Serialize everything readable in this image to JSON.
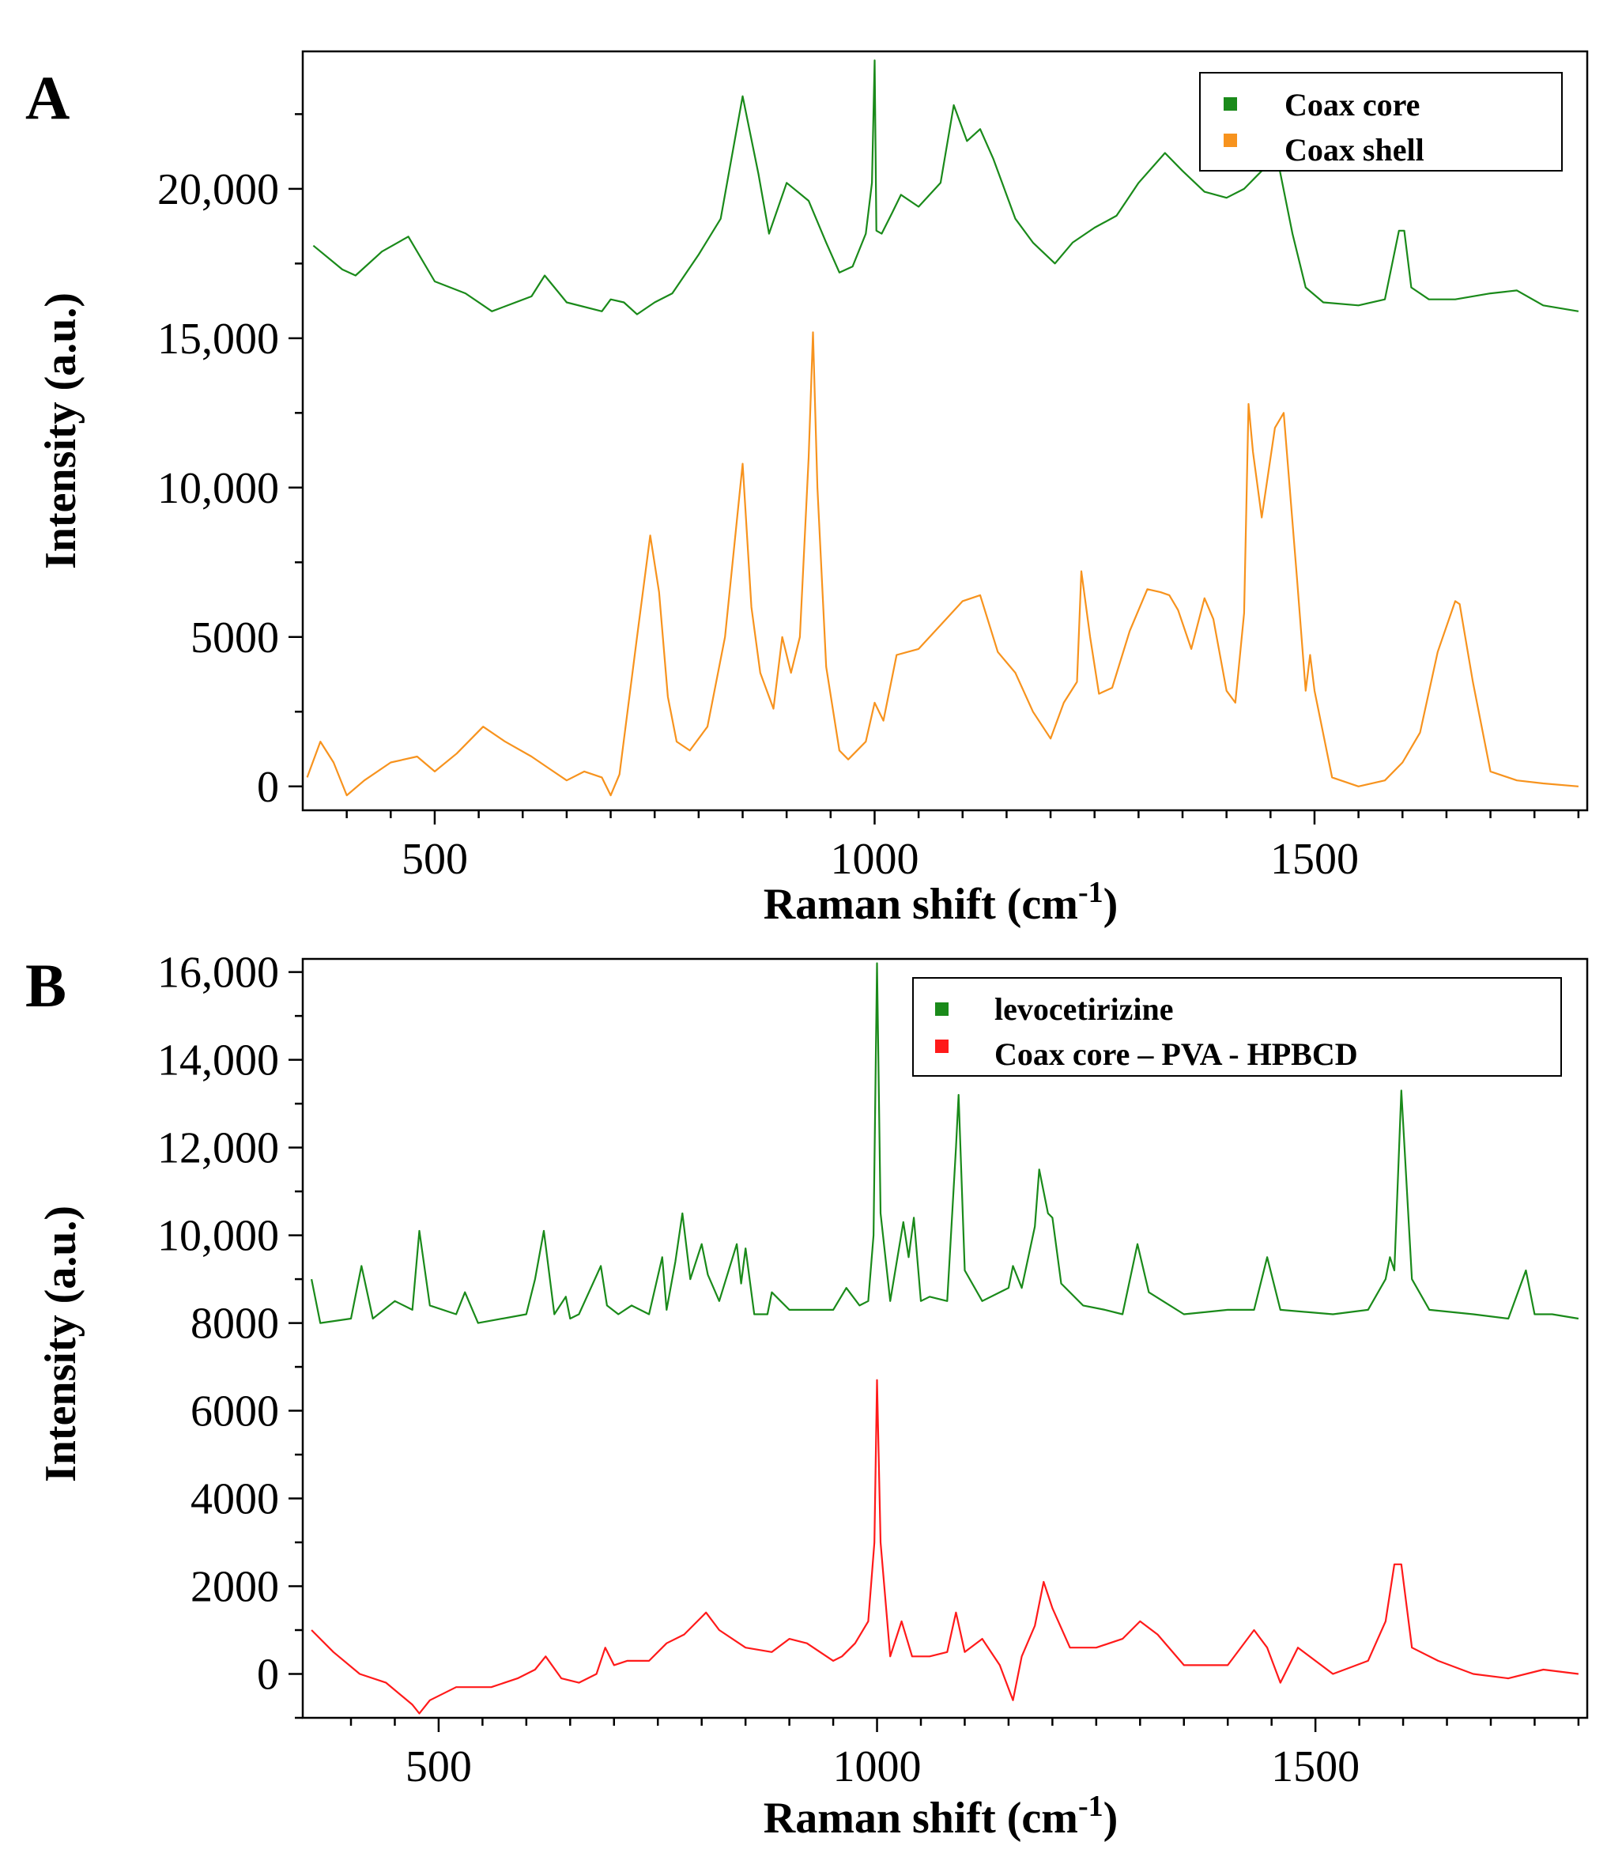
{
  "chart_data": [
    {
      "panel": "A",
      "type": "line",
      "title": "",
      "xlabel": "Raman shift (cm",
      "xlabel_sup": "-1",
      "xlabel_end": ")",
      "ylabel": "Intensity (a.u.)",
      "xlim": [
        350,
        1810
      ],
      "ylim": [
        -800,
        24600
      ],
      "xticks": [
        500,
        1000,
        1500
      ],
      "xtick_labels": [
        "500",
        "1000",
        "1500"
      ],
      "xminor": [
        400,
        450,
        550,
        600,
        650,
        700,
        750,
        800,
        850,
        900,
        950,
        1050,
        1100,
        1150,
        1200,
        1250,
        1300,
        1350,
        1400,
        1450,
        1550,
        1600,
        1650,
        1700,
        1750,
        1800
      ],
      "yticks": [
        0,
        5000,
        10000,
        15000,
        20000
      ],
      "ytick_labels": [
        "0",
        "5000",
        "10,000",
        "15,000",
        "20,000"
      ],
      "yminor": [
        2500,
        7500,
        12500,
        17500,
        22500
      ],
      "legend_position": "top-right",
      "series": [
        {
          "name": "Coax core",
          "color": "#1a8a1a",
          "x": [
            362,
            395,
            410,
            440,
            470,
            500,
            535,
            565,
            610,
            625,
            650,
            690,
            700,
            715,
            730,
            750,
            770,
            800,
            825,
            850,
            868,
            880,
            900,
            925,
            945,
            960,
            975,
            990,
            997,
            1000,
            1002,
            1008,
            1020,
            1030,
            1050,
            1075,
            1090,
            1105,
            1120,
            1135,
            1160,
            1180,
            1205,
            1225,
            1250,
            1275,
            1300,
            1330,
            1350,
            1375,
            1400,
            1420,
            1440,
            1460,
            1475,
            1490,
            1510,
            1550,
            1580,
            1596,
            1602,
            1610,
            1630,
            1660,
            1700,
            1730,
            1760,
            1800
          ],
          "values": [
            18100,
            17300,
            17100,
            17900,
            18400,
            16900,
            16500,
            15900,
            16400,
            17100,
            16200,
            15900,
            16300,
            16200,
            15800,
            16200,
            16500,
            17800,
            19000,
            23100,
            20500,
            18500,
            20200,
            19600,
            18200,
            17200,
            17400,
            18500,
            20200,
            24300,
            18600,
            18500,
            19200,
            19800,
            19400,
            20200,
            22800,
            21600,
            22000,
            21000,
            19000,
            18200,
            17500,
            18200,
            18700,
            19100,
            20200,
            21200,
            20600,
            19900,
            19700,
            20000,
            20600,
            20700,
            18500,
            16700,
            16200,
            16100,
            16300,
            18600,
            18600,
            16700,
            16300,
            16300,
            16500,
            16600,
            16100,
            15900
          ]
        },
        {
          "name": "Coax shell",
          "color": "#f7931e",
          "x": [
            355,
            370,
            385,
            400,
            420,
            450,
            480,
            500,
            525,
            555,
            580,
            610,
            630,
            650,
            670,
            690,
            700,
            710,
            730,
            745,
            755,
            765,
            775,
            790,
            810,
            830,
            850,
            860,
            870,
            885,
            895,
            905,
            915,
            925,
            930,
            935,
            945,
            960,
            970,
            990,
            1000,
            1010,
            1025,
            1050,
            1075,
            1100,
            1120,
            1140,
            1160,
            1180,
            1200,
            1215,
            1230,
            1235,
            1245,
            1255,
            1270,
            1290,
            1310,
            1325,
            1335,
            1345,
            1360,
            1375,
            1385,
            1400,
            1410,
            1420,
            1425,
            1430,
            1440,
            1455,
            1465,
            1480,
            1490,
            1495,
            1500,
            1520,
            1550,
            1580,
            1600,
            1620,
            1640,
            1660,
            1665,
            1680,
            1700,
            1730,
            1760,
            1800
          ],
          "values": [
            300,
            1500,
            800,
            -300,
            200,
            800,
            1000,
            500,
            1100,
            2000,
            1500,
            1000,
            600,
            200,
            500,
            300,
            -300,
            400,
            5000,
            8400,
            6500,
            3000,
            1500,
            1200,
            2000,
            5000,
            10800,
            6000,
            3800,
            2600,
            5000,
            3800,
            5000,
            11000,
            15200,
            10000,
            4000,
            1200,
            900,
            1500,
            2800,
            2200,
            4400,
            4600,
            5400,
            6200,
            6400,
            4500,
            3800,
            2500,
            1600,
            2800,
            3500,
            7200,
            5000,
            3100,
            3300,
            5200,
            6600,
            6500,
            6400,
            5900,
            4600,
            6300,
            5600,
            3200,
            2800,
            5800,
            12800,
            11200,
            9000,
            12000,
            12500,
            7000,
            3200,
            4400,
            3200,
            300,
            0,
            200,
            800,
            1800,
            4500,
            6200,
            6100,
            3500,
            500,
            200,
            100,
            0
          ]
        }
      ]
    },
    {
      "panel": "B",
      "type": "line",
      "title": "",
      "xlabel": "Raman shift (cm",
      "xlabel_sup": "-1",
      "xlabel_end": ")",
      "ylabel": "Intensity (a.u.)",
      "xlim": [
        345,
        1810
      ],
      "ylim": [
        -1000,
        16300
      ],
      "xticks": [
        500,
        1000,
        1500
      ],
      "xtick_labels": [
        "500",
        "1000",
        "1500"
      ],
      "xminor": [
        400,
        450,
        550,
        600,
        650,
        700,
        750,
        800,
        850,
        900,
        950,
        1050,
        1100,
        1150,
        1200,
        1250,
        1300,
        1350,
        1400,
        1450,
        1550,
        1600,
        1650,
        1700,
        1750,
        1800
      ],
      "yticks": [
        0,
        2000,
        4000,
        6000,
        8000,
        10000,
        12000,
        14000,
        16000
      ],
      "ytick_labels": [
        "0",
        "2000",
        "4000",
        "6000",
        "8000",
        "10,000",
        "12,000",
        "14,000",
        "16,000"
      ],
      "yminor": [
        -1000,
        1000,
        3000,
        5000,
        7000,
        9000,
        11000,
        13000,
        15000
      ],
      "legend_position": "top-right",
      "series": [
        {
          "name": "levocetirizine",
          "color": "#1a8a1a",
          "x": [
            355,
            365,
            400,
            412,
            425,
            450,
            470,
            478,
            490,
            520,
            530,
            545,
            600,
            610,
            620,
            632,
            645,
            650,
            660,
            685,
            692,
            705,
            720,
            740,
            755,
            760,
            770,
            778,
            787,
            800,
            807,
            820,
            840,
            845,
            850,
            860,
            875,
            880,
            900,
            950,
            965,
            980,
            990,
            996,
            1000,
            1004,
            1015,
            1030,
            1036,
            1042,
            1050,
            1060,
            1080,
            1090,
            1093,
            1100,
            1120,
            1150,
            1155,
            1165,
            1180,
            1185,
            1195,
            1200,
            1210,
            1235,
            1260,
            1280,
            1297,
            1310,
            1350,
            1400,
            1430,
            1445,
            1460,
            1520,
            1560,
            1580,
            1585,
            1590,
            1598,
            1610,
            1630,
            1680,
            1720,
            1740,
            1750,
            1770,
            1800
          ],
          "values": [
            9000,
            8000,
            8100,
            9300,
            8100,
            8500,
            8300,
            10100,
            8400,
            8200,
            8700,
            8000,
            8200,
            9000,
            10100,
            8200,
            8600,
            8100,
            8200,
            9300,
            8400,
            8200,
            8400,
            8200,
            9500,
            8300,
            9400,
            10500,
            9000,
            9800,
            9100,
            8500,
            9800,
            8900,
            9700,
            8200,
            8200,
            8700,
            8300,
            8300,
            8800,
            8400,
            8500,
            10000,
            16200,
            10500,
            8500,
            10300,
            9500,
            10400,
            8500,
            8600,
            8500,
            12000,
            13200,
            9200,
            8500,
            8800,
            9300,
            8800,
            10200,
            11500,
            10500,
            10400,
            8900,
            8400,
            8300,
            8200,
            9800,
            8700,
            8200,
            8300,
            8300,
            9500,
            8300,
            8200,
            8300,
            9000,
            9500,
            9200,
            13300,
            9000,
            8300,
            8200,
            8100,
            9200,
            8200,
            8200,
            8100
          ]
        },
        {
          "name": "Coax core – PVA - HPBCD",
          "color": "#ff1a1a",
          "x": [
            355,
            380,
            410,
            440,
            470,
            478,
            490,
            520,
            560,
            590,
            610,
            622,
            640,
            660,
            680,
            690,
            700,
            715,
            740,
            760,
            780,
            805,
            820,
            850,
            880,
            900,
            920,
            950,
            960,
            975,
            990,
            997,
            1000,
            1004,
            1015,
            1028,
            1040,
            1060,
            1080,
            1090,
            1100,
            1120,
            1140,
            1155,
            1165,
            1180,
            1190,
            1200,
            1220,
            1250,
            1280,
            1300,
            1320,
            1350,
            1400,
            1430,
            1445,
            1460,
            1480,
            1520,
            1560,
            1580,
            1590,
            1598,
            1610,
            1640,
            1680,
            1720,
            1760,
            1800
          ],
          "values": [
            1000,
            500,
            0,
            -200,
            -700,
            -900,
            -600,
            -300,
            -300,
            -100,
            100,
            400,
            -100,
            -200,
            0,
            600,
            200,
            300,
            300,
            700,
            900,
            1400,
            1000,
            600,
            500,
            800,
            700,
            300,
            400,
            700,
            1200,
            3000,
            6700,
            3000,
            400,
            1200,
            400,
            400,
            500,
            1400,
            500,
            800,
            200,
            -600,
            400,
            1100,
            2100,
            1500,
            600,
            600,
            800,
            1200,
            900,
            200,
            200,
            1000,
            600,
            -200,
            600,
            0,
            300,
            1200,
            2500,
            2500,
            600,
            300,
            0,
            -100,
            100,
            0
          ]
        }
      ]
    }
  ]
}
